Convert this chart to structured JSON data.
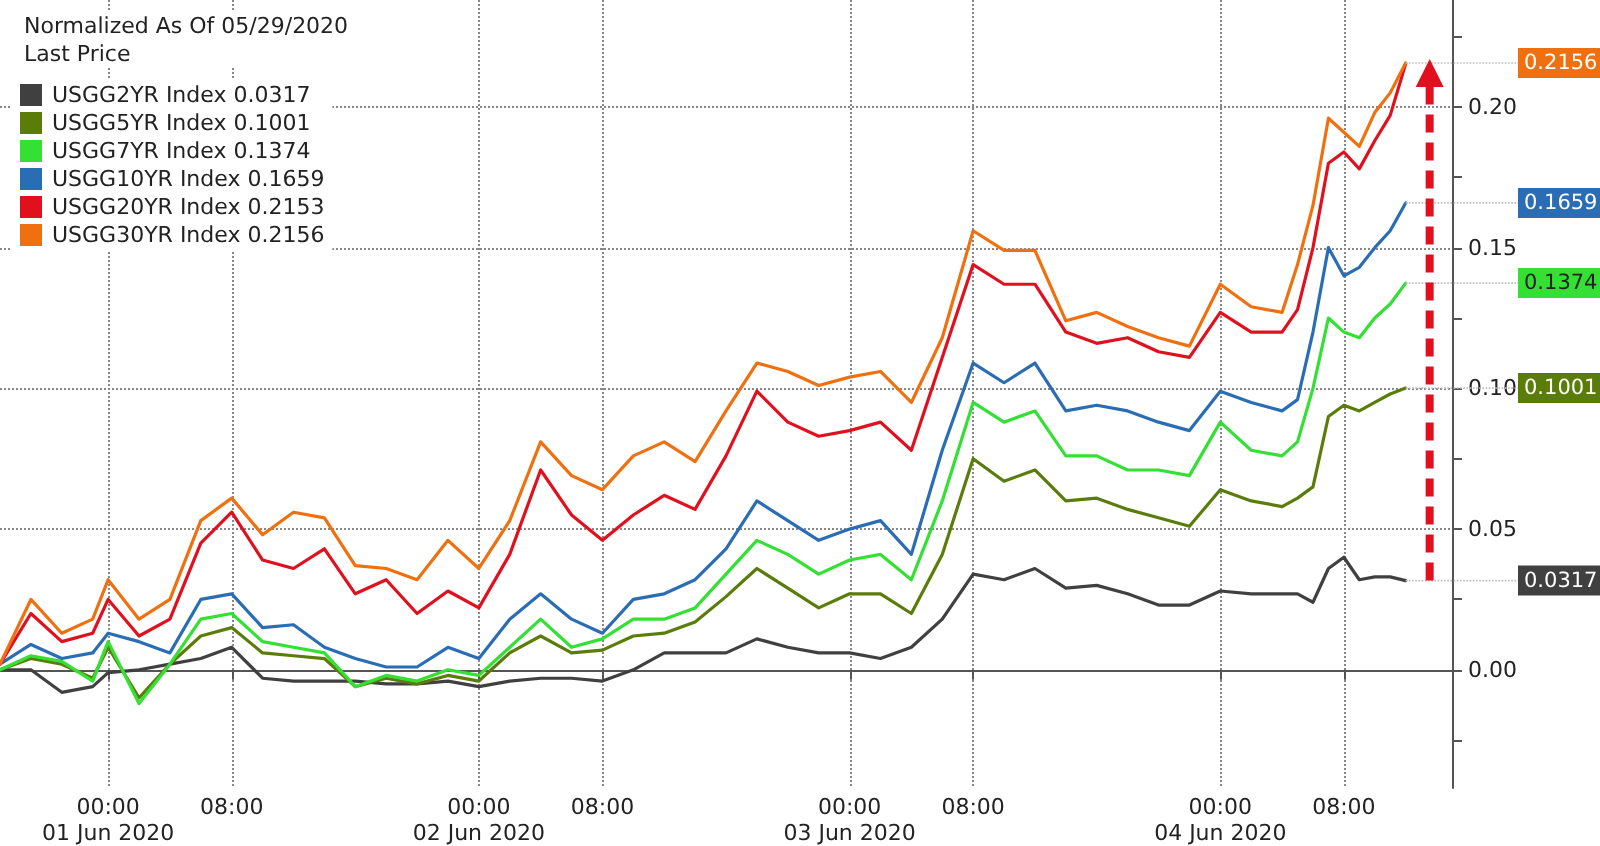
{
  "chart_data": {
    "type": "line",
    "legend_title": "Normalized As Of 05/29/2020\nLast Price",
    "legend": "top left",
    "grid": true,
    "marker": "none",
    "line_style": "solid",
    "x": [
      "2020-05-31T17:00",
      "2020-05-31T19:00",
      "2020-05-31T21:00",
      "2020-05-31T23:00",
      "2020-06-01T00:00",
      "2020-06-01T02:00",
      "2020-06-01T04:00",
      "2020-06-01T06:00",
      "2020-06-01T08:00",
      "2020-06-01T10:00",
      "2020-06-01T12:00",
      "2020-06-01T14:00",
      "2020-06-01T16:00",
      "2020-06-01T18:00",
      "2020-06-01T20:00",
      "2020-06-01T22:00",
      "2020-06-02T00:00",
      "2020-06-02T02:00",
      "2020-06-02T04:00",
      "2020-06-02T06:00",
      "2020-06-02T08:00",
      "2020-06-02T10:00",
      "2020-06-02T12:00",
      "2020-06-02T14:00",
      "2020-06-02T16:00",
      "2020-06-02T18:00",
      "2020-06-02T20:00",
      "2020-06-02T22:00",
      "2020-06-03T00:00",
      "2020-06-03T02:00",
      "2020-06-03T04:00",
      "2020-06-03T06:00",
      "2020-06-03T08:00",
      "2020-06-03T10:00",
      "2020-06-03T12:00",
      "2020-06-03T14:00",
      "2020-06-03T16:00",
      "2020-06-03T18:00",
      "2020-06-03T20:00",
      "2020-06-03T22:00",
      "2020-06-04T00:00",
      "2020-06-04T02:00",
      "2020-06-04T04:00",
      "2020-06-04T05:00",
      "2020-06-04T06:00",
      "2020-06-04T07:00",
      "2020-06-04T08:00",
      "2020-06-04T09:00",
      "2020-06-04T10:00",
      "2020-06-04T11:00",
      "2020-06-04T12:00"
    ],
    "xlim": [
      "2020-05-31T17:00",
      "2020-06-04T15:00"
    ],
    "xticks": [
      {
        "value": "2020-06-01T00:00",
        "label": "00:00\n01 Jun 2020"
      },
      {
        "value": "2020-06-01T08:00",
        "label": "08:00"
      },
      {
        "value": "2020-06-02T00:00",
        "label": "00:00\n02 Jun 2020"
      },
      {
        "value": "2020-06-02T08:00",
        "label": "08:00"
      },
      {
        "value": "2020-06-03T00:00",
        "label": "00:00\n03 Jun 2020"
      },
      {
        "value": "2020-06-03T08:00",
        "label": "08:00"
      },
      {
        "value": "2020-06-04T00:00",
        "label": "00:00\n04 Jun 2020"
      },
      {
        "value": "2020-06-04T08:00",
        "label": "08:00"
      }
    ],
    "ylim": [
      -0.042,
      0.238
    ],
    "yticks": [
      {
        "value": -0.025,
        "label": null
      },
      {
        "value": 0,
        "label": "0.00"
      },
      {
        "value": 0.025,
        "label": null
      },
      {
        "value": 0.05,
        "label": "0.05"
      },
      {
        "value": 0.075,
        "label": null
      },
      {
        "value": 0.1,
        "label": "0.10"
      },
      {
        "value": 0.125,
        "label": null
      },
      {
        "value": 0.15,
        "label": "0.15"
      },
      {
        "value": 0.175,
        "label": null
      },
      {
        "value": 0.2,
        "label": "0.20"
      },
      {
        "value": 0.225,
        "label": null
      }
    ],
    "series": [
      {
        "name": "USGG2YR Index 0.0317",
        "color": "#404040",
        "values": [
          0,
          0,
          -0.008,
          -0.006,
          -0.001,
          0,
          0.002,
          0.004,
          0.008,
          -0.003,
          -0.004,
          -0.004,
          -0.004,
          -0.005,
          -0.005,
          -0.004,
          -0.006,
          -0.004,
          -0.003,
          -0.003,
          -0.004,
          0,
          0.006,
          0.006,
          0.006,
          0.011,
          0.008,
          0.006,
          0.006,
          0.004,
          0.008,
          0.018,
          0.034,
          0.032,
          0.036,
          0.029,
          0.03,
          0.027,
          0.023,
          0.023,
          0.028,
          0.027,
          0.027,
          0.027,
          0.024,
          0.036,
          0.04,
          0.032,
          0.033,
          0.033,
          0.0317
        ],
        "value_labels": [
          null,
          null,
          null,
          null,
          null,
          null,
          null,
          null,
          null,
          null,
          null,
          null,
          null,
          null,
          null,
          null,
          null,
          null,
          null,
          null,
          null,
          null,
          null,
          null,
          null,
          null,
          null,
          null,
          null,
          null,
          null,
          null,
          null,
          null,
          null,
          null,
          null,
          null,
          null,
          null,
          null,
          null,
          null,
          null,
          null,
          null,
          null,
          null,
          null,
          null,
          "0.0317"
        ]
      },
      {
        "name": "USGG5YR Index 0.1001",
        "color": "#5a7d0a",
        "values": [
          0,
          0.004,
          0.002,
          -0.003,
          0.008,
          -0.01,
          0.002,
          0.012,
          0.015,
          0.006,
          0.005,
          0.004,
          -0.006,
          -0.003,
          -0.005,
          -0.002,
          -0.004,
          0.006,
          0.012,
          0.006,
          0.007,
          0.012,
          0.013,
          0.017,
          0.026,
          0.036,
          0.029,
          0.022,
          0.027,
          0.027,
          0.02,
          0.041,
          0.075,
          0.067,
          0.071,
          0.06,
          0.061,
          0.057,
          0.054,
          0.051,
          0.064,
          0.06,
          0.058,
          0.061,
          0.065,
          0.09,
          0.094,
          0.092,
          0.095,
          0.098,
          0.1001
        ],
        "value_labels": [
          null,
          null,
          null,
          null,
          null,
          null,
          null,
          null,
          null,
          null,
          null,
          null,
          null,
          null,
          null,
          null,
          null,
          null,
          null,
          null,
          null,
          null,
          null,
          null,
          null,
          null,
          null,
          null,
          null,
          null,
          null,
          null,
          null,
          null,
          null,
          null,
          null,
          null,
          null,
          null,
          null,
          null,
          null,
          null,
          null,
          null,
          null,
          null,
          null,
          null,
          "0.1001"
        ]
      },
      {
        "name": "USGG7YR Index 0.1374",
        "color": "#33e033",
        "values": [
          0,
          0.005,
          0.003,
          -0.004,
          0.01,
          -0.012,
          0.002,
          0.018,
          0.02,
          0.01,
          0.008,
          0.006,
          -0.006,
          -0.002,
          -0.004,
          0,
          -0.002,
          0.008,
          0.018,
          0.008,
          0.011,
          0.018,
          0.018,
          0.022,
          0.034,
          0.046,
          0.041,
          0.034,
          0.039,
          0.041,
          0.032,
          0.06,
          0.095,
          0.088,
          0.092,
          0.076,
          0.076,
          0.071,
          0.071,
          0.069,
          0.088,
          0.078,
          0.076,
          0.081,
          0.1,
          0.125,
          0.12,
          0.118,
          0.125,
          0.13,
          0.1374
        ],
        "value_labels": [
          null,
          null,
          null,
          null,
          null,
          null,
          null,
          null,
          null,
          null,
          null,
          null,
          null,
          null,
          null,
          null,
          null,
          null,
          null,
          null,
          null,
          null,
          null,
          null,
          null,
          null,
          null,
          null,
          null,
          null,
          null,
          null,
          null,
          null,
          null,
          null,
          null,
          null,
          null,
          null,
          null,
          null,
          null,
          null,
          null,
          null,
          null,
          null,
          null,
          null,
          "0.1374"
        ]
      },
      {
        "name": "USGG10YR Index 0.1659",
        "color": "#2a6db5",
        "values": [
          0.002,
          0.009,
          0.004,
          0.006,
          0.013,
          0.01,
          0.006,
          0.025,
          0.027,
          0.015,
          0.016,
          0.008,
          0.004,
          0.001,
          0.001,
          0.008,
          0.004,
          0.018,
          0.027,
          0.018,
          0.013,
          0.025,
          0.027,
          0.032,
          0.043,
          0.06,
          0.053,
          0.046,
          0.05,
          0.053,
          0.041,
          0.078,
          0.109,
          0.102,
          0.109,
          0.092,
          0.094,
          0.092,
          0.088,
          0.085,
          0.099,
          0.095,
          0.092,
          0.096,
          0.12,
          0.15,
          0.14,
          0.143,
          0.15,
          0.156,
          0.1659
        ],
        "value_labels": [
          null,
          null,
          null,
          null,
          null,
          null,
          null,
          null,
          null,
          null,
          null,
          null,
          null,
          null,
          null,
          null,
          null,
          null,
          null,
          null,
          null,
          null,
          null,
          null,
          null,
          null,
          null,
          null,
          null,
          null,
          null,
          null,
          null,
          null,
          null,
          null,
          null,
          null,
          null,
          null,
          null,
          null,
          null,
          null,
          null,
          null,
          null,
          null,
          null,
          null,
          "0.1659"
        ]
      },
      {
        "name": "USGG20YR Index 0.2153",
        "color": "#e0101e",
        "values": [
          0.002,
          0.02,
          0.01,
          0.013,
          0.025,
          0.012,
          0.018,
          0.045,
          0.056,
          0.039,
          0.036,
          0.043,
          0.027,
          0.032,
          0.02,
          0.028,
          0.022,
          0.041,
          0.071,
          0.055,
          0.046,
          0.055,
          0.062,
          0.057,
          0.076,
          0.099,
          0.088,
          0.083,
          0.085,
          0.088,
          0.078,
          0.111,
          0.144,
          0.137,
          0.137,
          0.12,
          0.116,
          0.118,
          0.113,
          0.111,
          0.127,
          0.12,
          0.12,
          0.128,
          0.15,
          0.18,
          0.184,
          0.178,
          0.188,
          0.197,
          0.2153
        ]
      },
      {
        "name": "USGG30YR Index 0.2156",
        "color": "#f07010",
        "values": [
          0.002,
          0.025,
          0.013,
          0.018,
          0.032,
          0.018,
          0.025,
          0.053,
          0.061,
          0.048,
          0.056,
          0.054,
          0.037,
          0.036,
          0.032,
          0.046,
          0.036,
          0.053,
          0.081,
          0.069,
          0.064,
          0.076,
          0.081,
          0.074,
          0.092,
          0.109,
          0.106,
          0.101,
          0.104,
          0.106,
          0.095,
          0.118,
          0.156,
          0.149,
          0.149,
          0.124,
          0.127,
          0.122,
          0.118,
          0.115,
          0.137,
          0.129,
          0.127,
          0.144,
          0.165,
          0.196,
          0.191,
          0.186,
          0.198,
          0.205,
          0.2156
        ],
        "value_labels": [
          null,
          null,
          null,
          null,
          null,
          null,
          null,
          null,
          null,
          null,
          null,
          null,
          null,
          null,
          null,
          null,
          null,
          null,
          null,
          null,
          null,
          null,
          null,
          null,
          null,
          null,
          null,
          null,
          null,
          null,
          null,
          null,
          null,
          null,
          null,
          null,
          null,
          null,
          null,
          null,
          null,
          null,
          null,
          null,
          null,
          null,
          null,
          null,
          null,
          null,
          "0.2156"
        ]
      }
    ]
  }
}
